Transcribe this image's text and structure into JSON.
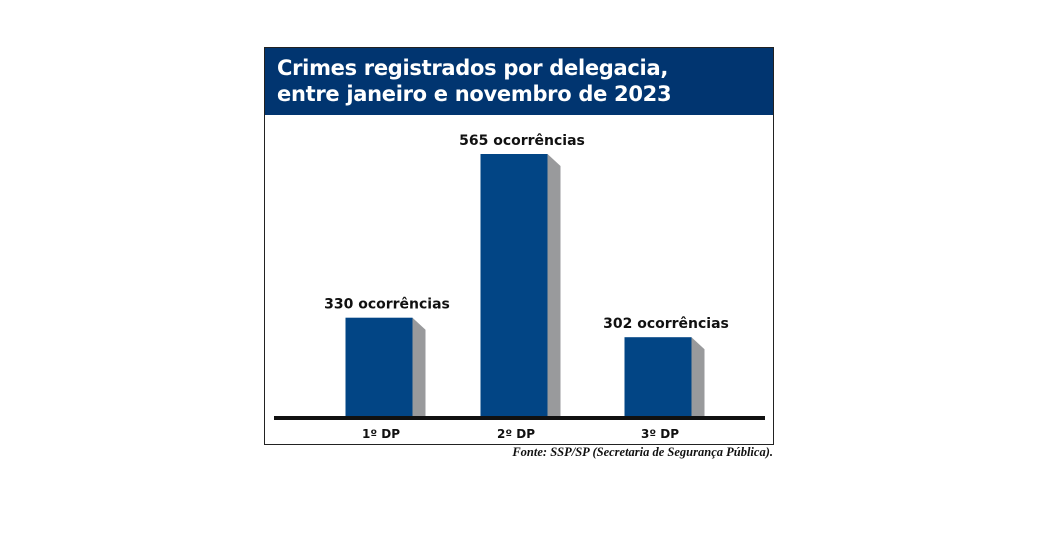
{
  "chart_data": {
    "type": "bar",
    "title": "Crimes registrados por delegacia,",
    "subtitle": "entre janeiro e novembro de 2023",
    "categories": [
      "1º DP",
      "2º DP",
      "3º DP"
    ],
    "values": [
      330,
      565,
      302
    ],
    "data_labels": [
      "330 ocorrências",
      "565 ocorrências",
      "302 ocorrências"
    ],
    "xlabel": "",
    "ylabel": "",
    "ylim": [
      186,
      565
    ],
    "grid": false,
    "bar_color": "#024585",
    "shadow_color": "#999a9c",
    "header_color": "#013570"
  },
  "source": "Fonte: SSP/SP (Secretaria de Segurança Pública)."
}
